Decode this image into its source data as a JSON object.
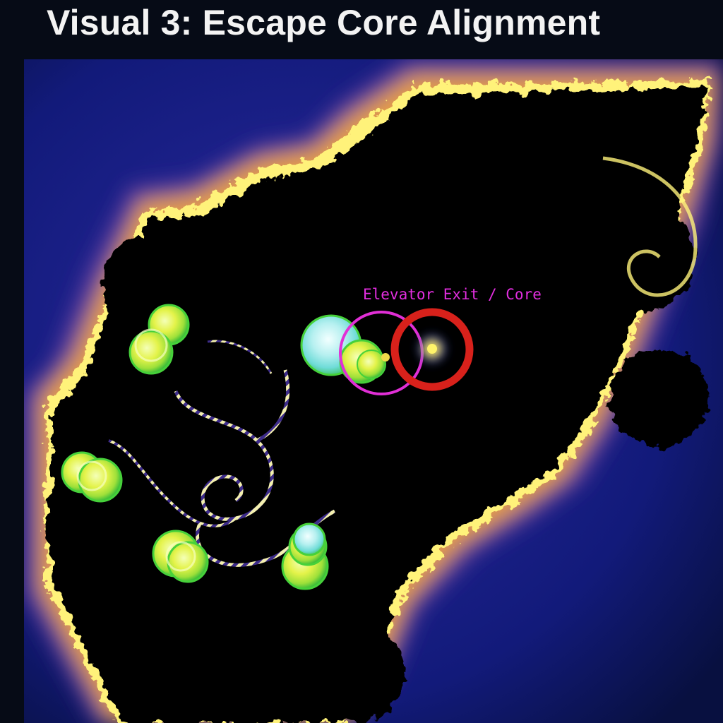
{
  "header": {
    "title": "Visual 3: Escape Core Alignment"
  },
  "figure": {
    "core_label": "Elevator Exit / Core",
    "colors": {
      "page_background": "#060b16",
      "outer_space": "#0b1150",
      "glow_purple": "#6a3fa0",
      "glow_orange": "#f2a640",
      "edge_yellow": "#fff27a",
      "set_body": "#000000",
      "label_magenta": "#e32ee0",
      "target_ring_red": "#d8211b",
      "exit_ring_magenta": "#e12fd6",
      "core_light": "#fff46a",
      "orb_green": "#b6ea3a",
      "orb_cyan": "#8ee8e6"
    },
    "icons": [
      "core-glow-icon",
      "target-ring-icon",
      "exit-ring-icon",
      "glowing-orb-cluster-icon"
    ]
  }
}
